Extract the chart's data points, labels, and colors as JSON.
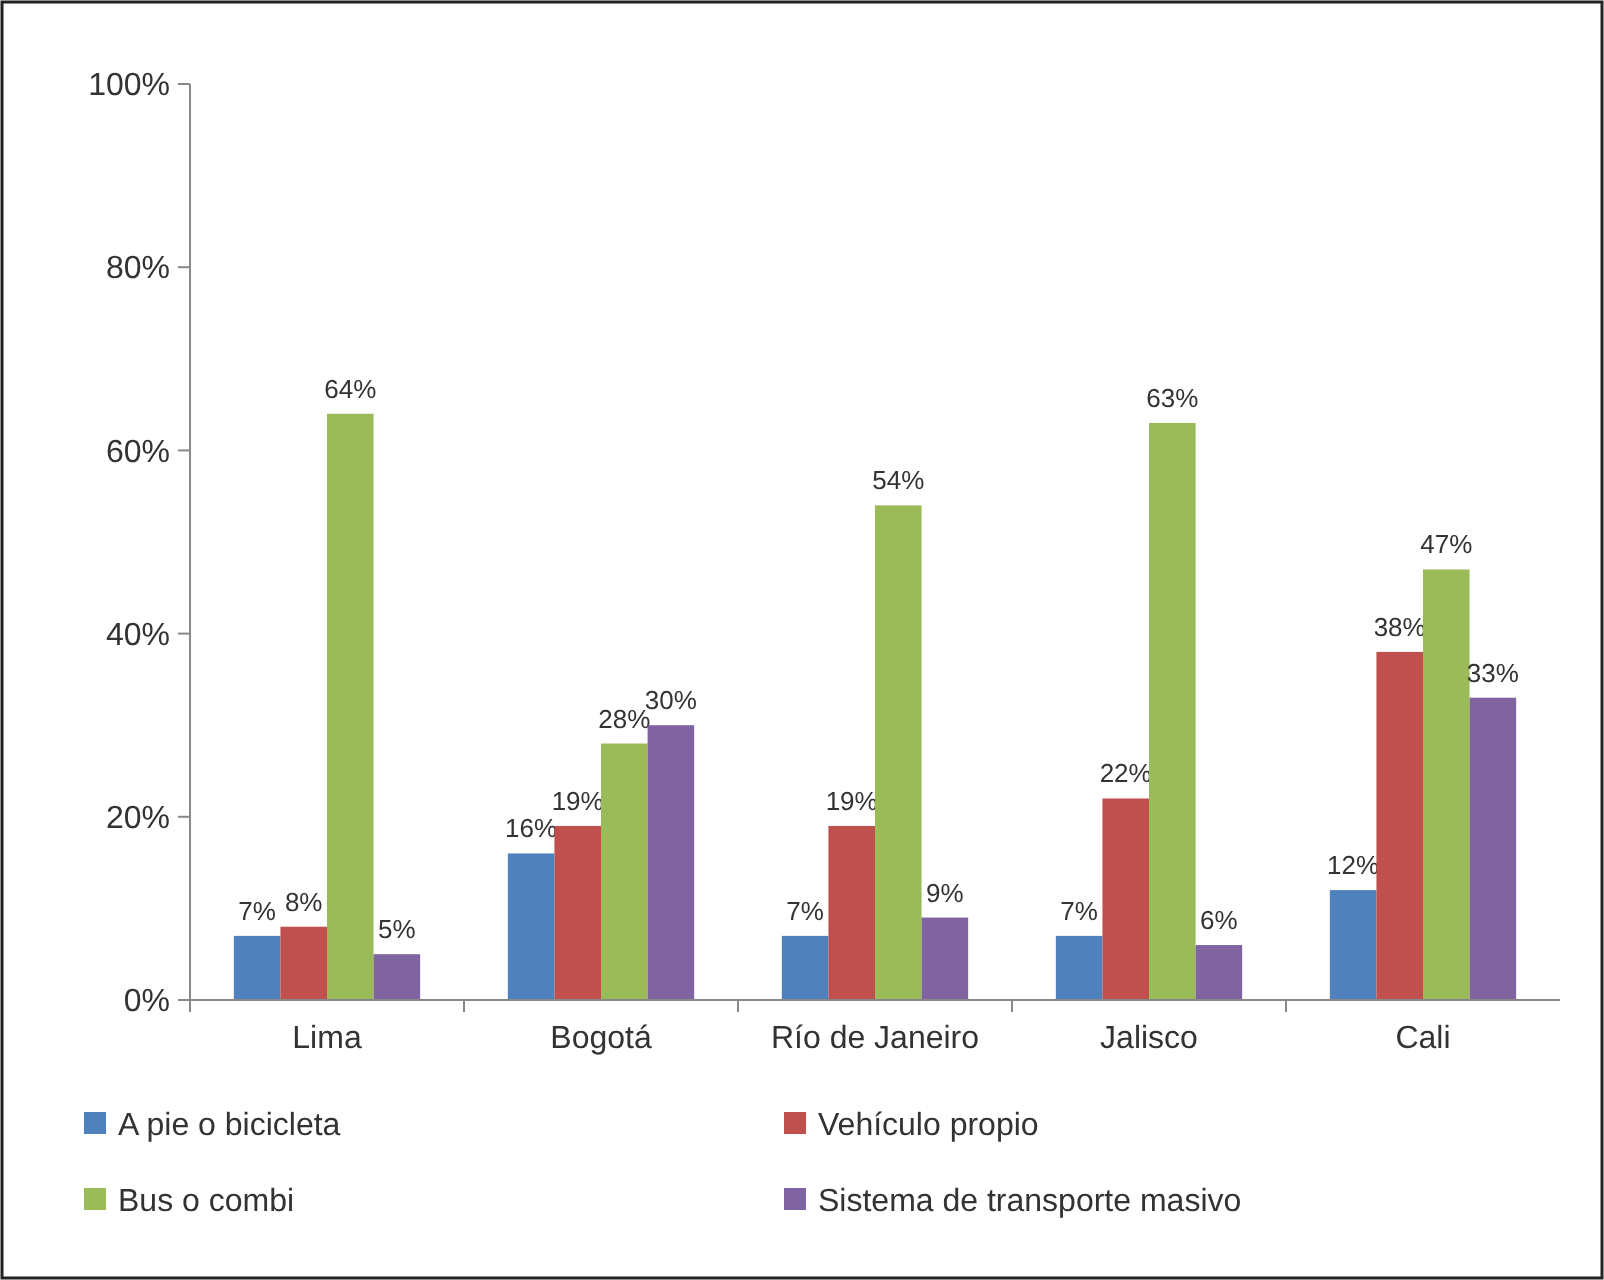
{
  "chart_data": {
    "type": "bar",
    "categories": [
      "Lima",
      "Bogotá",
      "Río de Janeiro",
      "Jalisco",
      "Cali"
    ],
    "series": [
      {
        "name": "A pie o bicicleta",
        "color": "#4f81bd",
        "values": [
          7,
          16,
          7,
          7,
          12
        ],
        "value_labels": [
          "7%",
          "16%",
          "7%",
          "7%",
          "12%"
        ]
      },
      {
        "name": "Vehículo propio",
        "color": "#c0504d",
        "values": [
          8,
          19,
          19,
          22,
          38
        ],
        "value_labels": [
          "8%",
          "19%",
          "19%",
          "22%",
          "38%"
        ]
      },
      {
        "name": "Bus o combi",
        "color": "#9bbb59",
        "values": [
          64,
          28,
          54,
          63,
          47
        ],
        "value_labels": [
          "64%",
          "28%",
          "54%",
          "63%",
          "47%"
        ]
      },
      {
        "name": "Sistema de transporte masivo",
        "color": "#8064a2",
        "values": [
          5,
          30,
          9,
          6,
          33
        ],
        "value_labels": [
          "5%",
          "30%",
          "9%",
          "6%",
          "33%"
        ]
      }
    ],
    "ylim": [
      0,
      100
    ],
    "yticks": [
      {
        "value": 0,
        "label": "0%"
      },
      {
        "value": 20,
        "label": "20%"
      },
      {
        "value": 40,
        "label": "40%"
      },
      {
        "value": 60,
        "label": "60%"
      },
      {
        "value": 80,
        "label": "80%"
      },
      {
        "value": 100,
        "label": "100%"
      }
    ],
    "grid": false,
    "legend": "bottom"
  }
}
